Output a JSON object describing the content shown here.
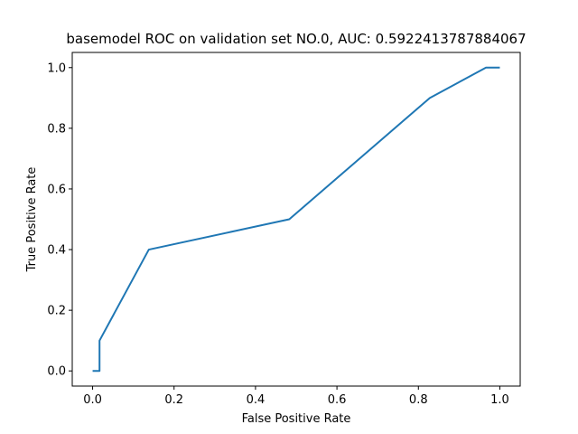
{
  "chart_data": {
    "type": "line",
    "title": "basemodel ROC on validation set NO.0, AUC: 0.5922413787884067",
    "xlabel": "False Positive Rate",
    "ylabel": "True Positive Rate",
    "xlim": [
      -0.05,
      1.05
    ],
    "ylim": [
      -0.05,
      1.05
    ],
    "xticks": [
      0.0,
      0.2,
      0.4,
      0.6,
      0.8,
      1.0
    ],
    "yticks": [
      0.0,
      0.2,
      0.4,
      0.6,
      0.8,
      1.0
    ],
    "xtick_labels": [
      "0.0",
      "0.2",
      "0.4",
      "0.6",
      "0.8",
      "1.0"
    ],
    "ytick_labels": [
      "0.0",
      "0.2",
      "0.4",
      "0.6",
      "0.8",
      "1.0"
    ],
    "grid": false,
    "series": [
      {
        "color": "#1f77b4",
        "x": [
          0.0,
          0.017,
          0.017,
          0.017,
          0.138,
          0.483,
          0.828,
          0.966,
          1.0
        ],
        "y": [
          0.0,
          0.0,
          0.0,
          0.1,
          0.4,
          0.5,
          0.9,
          1.0,
          1.0
        ]
      }
    ]
  }
}
